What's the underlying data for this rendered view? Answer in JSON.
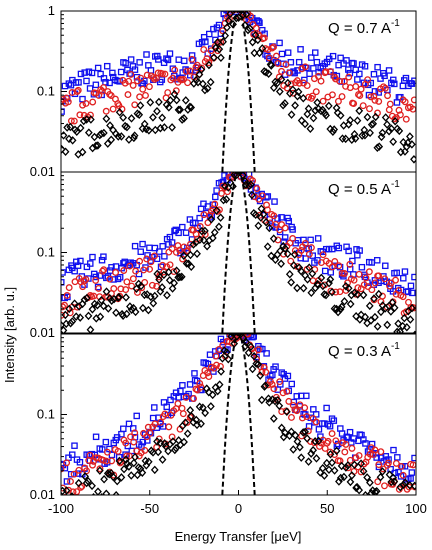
{
  "chart_data": {
    "type": "scatter",
    "xlabel": "Energy Transfer [μeV]",
    "ylabel": "Intensity [arb. u.]",
    "xlim": [
      -100,
      100
    ],
    "ylim": [
      0.01,
      1
    ],
    "yscale": "log",
    "x_ticks": [
      -100,
      -50,
      0,
      50,
      100
    ],
    "y_tick_labels_by_panel": [
      [
        "1",
        "0.1",
        "0.01"
      ],
      [
        "0.1",
        "0.01"
      ],
      [
        "0.1",
        "0.01"
      ]
    ],
    "colors": {
      "blue": "#1010ee",
      "red": "#e02020",
      "black": "#000000",
      "resolution": "#000000"
    },
    "panels": [
      {
        "label_text": "Q = 0.7 A",
        "label_sup": "-1",
        "series": [
          {
            "color": "blue",
            "marker": "square",
            "edge": 0.09,
            "halfwidth": 10,
            "ax": 0.085,
            "ay": 0.0
          },
          {
            "color": "red",
            "marker": "circle",
            "edge": 0.055,
            "halfwidth": 9,
            "ax": 0.07,
            "ay": 0.0
          },
          {
            "color": "black",
            "marker": "diamond",
            "edge": 0.022,
            "halfwidth": 7,
            "ax": 0.06,
            "ay": 0.0
          }
        ]
      },
      {
        "label_text": "Q = 0.5 A",
        "label_sup": "-1",
        "series": [
          {
            "color": "blue",
            "marker": "square",
            "edge": 0.04,
            "halfwidth": 11,
            "ax": 0.05,
            "ay": 0.0
          },
          {
            "color": "red",
            "marker": "circle",
            "edge": 0.025,
            "halfwidth": 9,
            "ax": 0.05,
            "ay": 0.0
          },
          {
            "color": "black",
            "marker": "diamond",
            "edge": 0.013,
            "halfwidth": 7,
            "ax": 0.05,
            "ay": 0.0
          }
        ]
      },
      {
        "label_text": "Q = 0.3 A",
        "label_sup": "-1",
        "series": [
          {
            "color": "blue",
            "marker": "square",
            "edge": 0.012,
            "halfwidth": 13,
            "ax": 0.04,
            "ay": 0.0
          },
          {
            "color": "red",
            "marker": "circle",
            "edge": 0.01,
            "halfwidth": 10,
            "ax": 0.04,
            "ay": 0.0
          },
          {
            "color": "black",
            "marker": "diamond",
            "edge": 0.008,
            "halfwidth": 7,
            "ax": 0.04,
            "ay": 0.0
          }
        ]
      }
    ],
    "resolution": {
      "style": "dashed",
      "color": "resolution",
      "fwhm": 3.0
    }
  }
}
